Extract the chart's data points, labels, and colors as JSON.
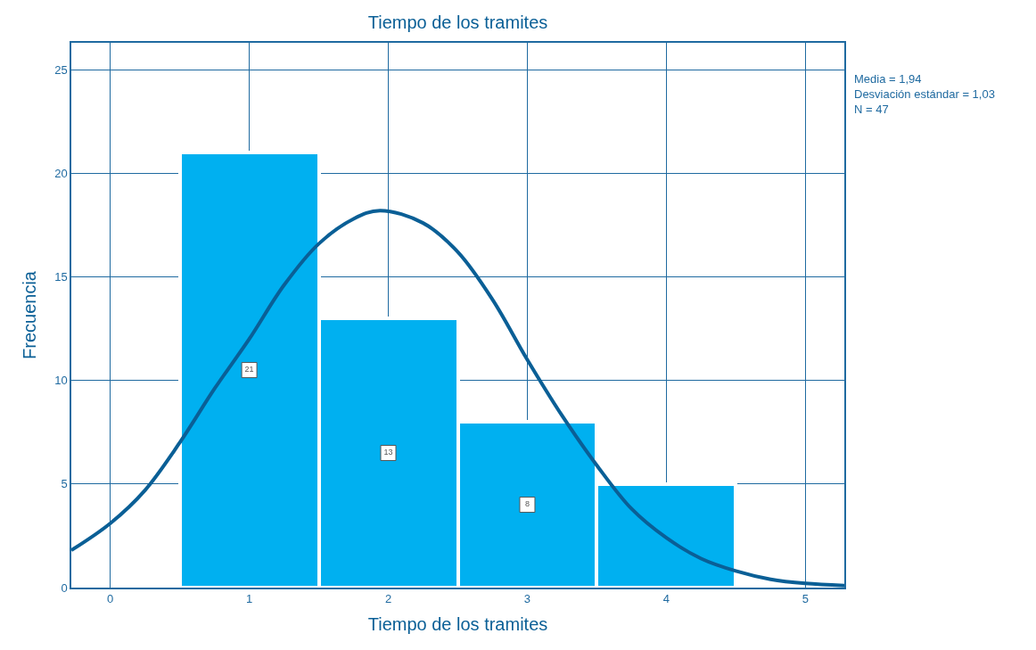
{
  "chart_data": {
    "type": "histogram",
    "title": "Tiempo de los tramites",
    "xlabel": "Tiempo de los tramites",
    "ylabel": "Frecuencia",
    "bins": [
      0.5,
      1.5,
      2.5,
      3.5,
      4.5
    ],
    "values": [
      21,
      13,
      8,
      5
    ],
    "color": "#00b0f0",
    "value_labels": [
      "21",
      "13",
      "8",
      null
    ],
    "xlim": [
      -0.28,
      5.28
    ],
    "xticks": [
      0,
      1,
      2,
      3,
      4,
      5
    ],
    "ylim": [
      0,
      26.3
    ],
    "yticks": [
      0,
      5,
      10,
      15,
      20,
      25
    ],
    "grid": true,
    "series": [
      {
        "type": "line",
        "color": "#0a5f96",
        "x": [
          -0.28,
          0,
          0.25,
          0.5,
          0.75,
          1,
          1.25,
          1.5,
          1.75,
          1.94,
          2.25,
          2.5,
          2.75,
          3,
          3.25,
          3.5,
          3.75,
          4,
          4.25,
          4.5,
          4.75,
          5,
          5.28
        ],
        "values": [
          1.8,
          3.1,
          4.7,
          7.0,
          9.6,
          12.0,
          14.6,
          16.6,
          17.8,
          18.2,
          17.6,
          16.2,
          13.9,
          11.0,
          8.3,
          5.9,
          3.8,
          2.4,
          1.4,
          0.8,
          0.4,
          0.2,
          0.1
        ]
      }
    ],
    "annotations": [
      "Media = 1,94",
      "Desviación estándar = 1,03",
      "N = 47"
    ]
  }
}
